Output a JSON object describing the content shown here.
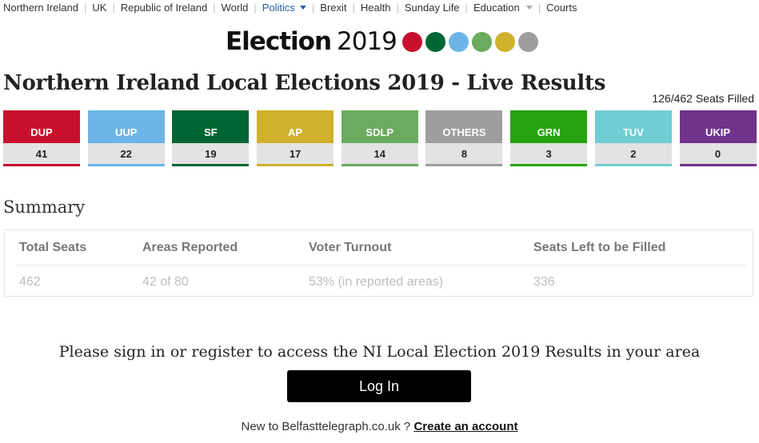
{
  "nav": {
    "items": [
      {
        "label": "Northern Ireland"
      },
      {
        "label": "UK"
      },
      {
        "label": "Republic of Ireland"
      },
      {
        "label": "World"
      },
      {
        "label": "Politics"
      },
      {
        "label": "Brexit"
      },
      {
        "label": "Health"
      },
      {
        "label": "Sunday Life"
      },
      {
        "label": "Education"
      },
      {
        "label": "Courts"
      }
    ],
    "active": "Politics"
  },
  "logo": {
    "word": "Election",
    "year": "2019",
    "dot_colors": [
      "#c8102e",
      "#006633",
      "#6cb5e6",
      "#6aab5f",
      "#cfb12b",
      "#9e9e9e"
    ]
  },
  "page": {
    "title": "Northern Ireland Local Elections 2019 - Live Results",
    "seats_filled": "126/462 Seats Filled"
  },
  "parties": [
    {
      "name": "DUP",
      "seats": "41",
      "color": "#c8102e"
    },
    {
      "name": "UUP",
      "seats": "22",
      "color": "#6cb5e6"
    },
    {
      "name": "SF",
      "seats": "19",
      "color": "#006633"
    },
    {
      "name": "AP",
      "seats": "17",
      "color": "#cfb12b"
    },
    {
      "name": "SDLP",
      "seats": "14",
      "color": "#6aab5f"
    },
    {
      "name": "OTHERS",
      "seats": "8",
      "color": "#9e9e9e"
    },
    {
      "name": "GRN",
      "seats": "3",
      "color": "#26a30f"
    },
    {
      "name": "TUV",
      "seats": "2",
      "color": "#6fcdd4"
    },
    {
      "name": "UKIP",
      "seats": "0",
      "color": "#70338c"
    }
  ],
  "summary": {
    "title": "Summary",
    "headers": [
      "Total Seats",
      "Areas Reported",
      "Voter Turnout",
      "Seats Left to be Filled"
    ],
    "values": [
      "462",
      "42 of 80",
      "53% (in reported areas)",
      "336"
    ]
  },
  "signin": {
    "prompt": "Please sign in or register to access the NI Local Election 2019 Results in your area",
    "login_label": "Log In",
    "new_user_text": "New to Belfasttelegraph.co.uk ?",
    "create_account_label": "Create an account"
  }
}
